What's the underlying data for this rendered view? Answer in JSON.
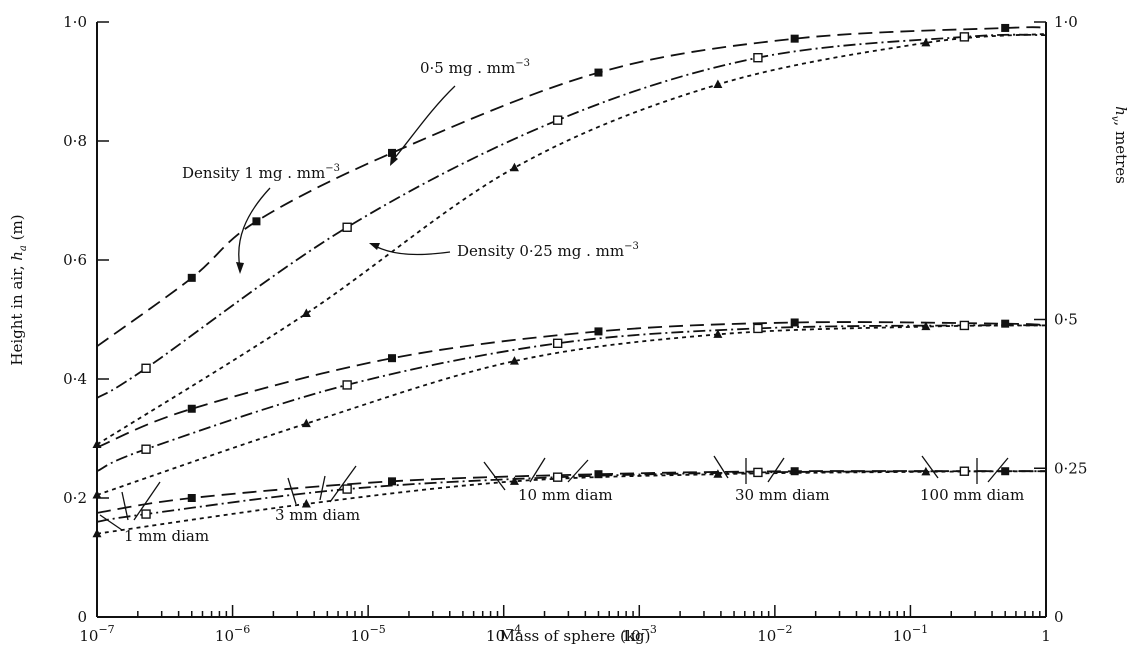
{
  "chart_data": {
    "type": "line",
    "xlabel": "Mass of sphere (kg)",
    "ylabel_left_parts": [
      "Height in air, ",
      "h",
      "a",
      " (m)"
    ],
    "ylabel_right_parts": [
      "h",
      "v",
      ", metres"
    ],
    "x_scale": "log",
    "xlim": [
      1e-07,
      1
    ],
    "ylim": [
      0,
      1.0
    ],
    "x_ticks": [
      {
        "value": 1e-07,
        "base": "10",
        "exp": "−7"
      },
      {
        "value": 1e-06,
        "base": "10",
        "exp": "−6"
      },
      {
        "value": 1e-05,
        "base": "10",
        "exp": "−5"
      },
      {
        "value": 0.0001,
        "base": "10",
        "exp": "−4"
      },
      {
        "value": 0.001,
        "base": "10",
        "exp": "−3"
      },
      {
        "value": 0.01,
        "base": "10",
        "exp": "−2"
      },
      {
        "value": 0.1,
        "base": "10",
        "exp": "−1"
      },
      {
        "value": 1,
        "base": "1",
        "exp": ""
      }
    ],
    "y_ticks_left": [
      {
        "value": 0,
        "label": "0"
      },
      {
        "value": 0.2,
        "label": "0·2"
      },
      {
        "value": 0.4,
        "label": "0·4"
      },
      {
        "value": 0.6,
        "label": "0·6"
      },
      {
        "value": 0.8,
        "label": "0·8"
      },
      {
        "value": 1.0,
        "label": "1·0"
      }
    ],
    "y_ticks_right": [
      {
        "value": 0,
        "label": "0"
      },
      {
        "value": 0.25,
        "label": "0·25"
      },
      {
        "value": 0.5,
        "label": "0·5"
      },
      {
        "value": 1.0,
        "label": "1·0"
      }
    ],
    "series": [
      {
        "group": "hv=1.0",
        "density": 1,
        "style": "long-dash",
        "marker": "filled-square",
        "x": [
          1e-07,
          5e-07,
          1.5e-06,
          1.5e-05,
          0.0005,
          0.014,
          0.5,
          1
        ],
        "y": [
          0.455,
          0.57,
          0.665,
          0.78,
          0.915,
          0.972,
          0.99,
          0.99
        ],
        "markers_x": [
          5e-07,
          1.5e-06,
          1.5e-05,
          0.0005,
          0.014,
          0.5
        ]
      },
      {
        "group": "hv=1.0",
        "density": 0.5,
        "style": "dash-dot",
        "marker": "open-square",
        "x": [
          1e-07,
          2.3e-07,
          7e-06,
          0.00025,
          0.0075,
          0.25,
          1
        ],
        "y": [
          0.368,
          0.418,
          0.655,
          0.835,
          0.94,
          0.975,
          0.978
        ],
        "markers_x": [
          2.3e-07,
          7e-06,
          0.00025,
          0.0075,
          0.25
        ]
      },
      {
        "group": "hv=1.0",
        "density": 0.25,
        "style": "short-dash",
        "marker": "filled-triangle",
        "x": [
          1e-07,
          3.5e-06,
          0.00012,
          0.0038,
          0.13,
          1
        ],
        "y": [
          0.29,
          0.51,
          0.755,
          0.895,
          0.965,
          0.98
        ],
        "markers_x": [
          1e-07,
          3.5e-06,
          0.00012,
          0.0038,
          0.13
        ]
      },
      {
        "group": "hv=0.5",
        "density": 1,
        "style": "long-dash",
        "marker": "filled-square",
        "x": [
          1e-07,
          5e-07,
          1.5e-05,
          0.0005,
          0.014,
          0.5,
          1
        ],
        "y": [
          0.285,
          0.35,
          0.435,
          0.48,
          0.495,
          0.493,
          0.49
        ],
        "markers_x": [
          5e-07,
          1.5e-05,
          0.0005,
          0.014,
          0.5
        ]
      },
      {
        "group": "hv=0.5",
        "density": 0.5,
        "style": "dash-dot",
        "marker": "open-square",
        "x": [
          1e-07,
          2.3e-07,
          7e-06,
          0.00025,
          0.0075,
          0.25,
          1
        ],
        "y": [
          0.245,
          0.282,
          0.39,
          0.46,
          0.485,
          0.49,
          0.49
        ],
        "markers_x": [
          2.3e-07,
          7e-06,
          0.00025,
          0.0075,
          0.25
        ]
      },
      {
        "group": "hv=0.5",
        "density": 0.25,
        "style": "short-dash",
        "marker": "filled-triangle",
        "x": [
          1e-07,
          3.5e-06,
          0.00012,
          0.0038,
          0.13,
          1
        ],
        "y": [
          0.205,
          0.325,
          0.43,
          0.475,
          0.488,
          0.49
        ],
        "markers_x": [
          1e-07,
          3.5e-06,
          0.00012,
          0.0038,
          0.13
        ]
      },
      {
        "group": "hv=0.25",
        "density": 1,
        "style": "long-dash",
        "marker": "filled-square",
        "x": [
          1e-07,
          5e-07,
          1.5e-05,
          0.0005,
          0.014,
          0.5,
          1
        ],
        "y": [
          0.175,
          0.2,
          0.228,
          0.24,
          0.245,
          0.245,
          0.245
        ],
        "markers_x": [
          5e-07,
          1.5e-05,
          0.0005,
          0.014,
          0.5
        ]
      },
      {
        "group": "hv=0.25",
        "density": 0.5,
        "style": "dash-dot",
        "marker": "open-square",
        "x": [
          1e-07,
          2.3e-07,
          7e-06,
          0.00025,
          0.0075,
          0.25,
          1
        ],
        "y": [
          0.16,
          0.173,
          0.215,
          0.235,
          0.243,
          0.245,
          0.245
        ],
        "markers_x": [
          2.3e-07,
          7e-06,
          0.00025,
          0.0075,
          0.25
        ]
      },
      {
        "group": "hv=0.25",
        "density": 0.25,
        "style": "short-dash",
        "marker": "filled-triangle",
        "x": [
          1e-07,
          3.5e-06,
          0.00012,
          0.0038,
          0.13,
          1
        ],
        "y": [
          0.14,
          0.19,
          0.228,
          0.24,
          0.244,
          0.245
        ],
        "markers_x": [
          1e-07,
          3.5e-06,
          0.00012,
          0.0038,
          0.13
        ]
      }
    ],
    "annotations": {
      "density_1_parts": [
        "Density 1 mg . mm",
        "−3"
      ],
      "density_05_parts": [
        "0·5 mg . mm",
        "−3"
      ],
      "density_025_parts": [
        "Density 0·25 mg . mm",
        "−3"
      ],
      "diam_1": "1 mm diam",
      "diam_3": "3 mm diam",
      "diam_10": "10 mm diam",
      "diam_30": "30 mm diam",
      "diam_100": "100 mm diam"
    },
    "grid": false,
    "legend": "none"
  }
}
